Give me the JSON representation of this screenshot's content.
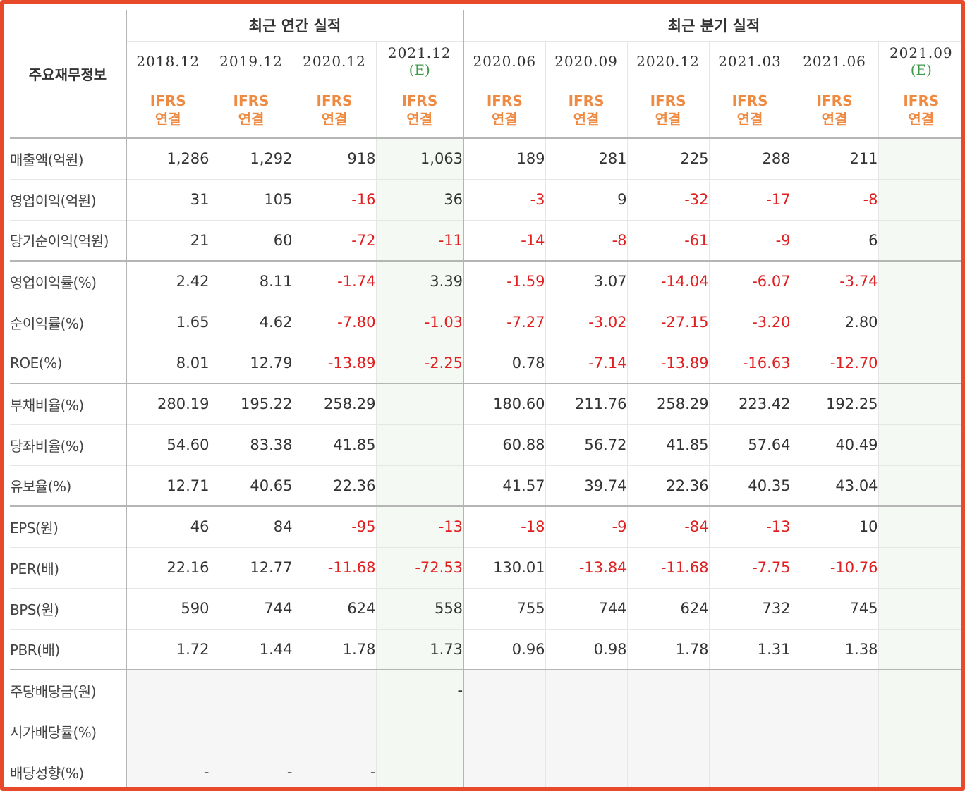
{
  "header": {
    "main_label": "주요재무정보",
    "annual_title": "최근 연간 실적",
    "quarter_title": "최근 분기 실적",
    "estimate_mark": "(E)",
    "ifrs_line1": "IFRS",
    "ifrs_line2": "연결"
  },
  "periods": [
    {
      "label": "2018.12"
    },
    {
      "label": "2019.12"
    },
    {
      "label": "2020.12"
    },
    {
      "label": "2021.12"
    },
    {
      "label": "2020.06"
    },
    {
      "label": "2020.09"
    },
    {
      "label": "2020.12"
    },
    {
      "label": "2021.03"
    },
    {
      "label": "2021.06"
    },
    {
      "label": "2021.09"
    }
  ],
  "rows": [
    {
      "label": "매출액(억원)",
      "values": [
        "1,286",
        "1,292",
        "918",
        "1,063",
        "189",
        "281",
        "225",
        "288",
        "211",
        ""
      ]
    },
    {
      "label": "영업이익(억원)",
      "values": [
        "31",
        "105",
        "-16",
        "36",
        "-3",
        "9",
        "-32",
        "-17",
        "-8",
        ""
      ]
    },
    {
      "label": "당기순이익(억원)",
      "values": [
        "21",
        "60",
        "-72",
        "-11",
        "-14",
        "-8",
        "-61",
        "-9",
        "6",
        ""
      ]
    },
    {
      "label": "영업이익률(%)",
      "values": [
        "2.42",
        "8.11",
        "-1.74",
        "3.39",
        "-1.59",
        "3.07",
        "-14.04",
        "-6.07",
        "-3.74",
        ""
      ]
    },
    {
      "label": "순이익률(%)",
      "values": [
        "1.65",
        "4.62",
        "-7.80",
        "-1.03",
        "-7.27",
        "-3.02",
        "-27.15",
        "-3.20",
        "2.80",
        ""
      ]
    },
    {
      "label": "ROE(%)",
      "values": [
        "8.01",
        "12.79",
        "-13.89",
        "-2.25",
        "0.78",
        "-7.14",
        "-13.89",
        "-16.63",
        "-12.70",
        ""
      ]
    },
    {
      "label": "부채비율(%)",
      "values": [
        "280.19",
        "195.22",
        "258.29",
        "",
        "180.60",
        "211.76",
        "258.29",
        "223.42",
        "192.25",
        ""
      ]
    },
    {
      "label": "당좌비율(%)",
      "values": [
        "54.60",
        "83.38",
        "41.85",
        "",
        "60.88",
        "56.72",
        "41.85",
        "57.64",
        "40.49",
        ""
      ]
    },
    {
      "label": "유보율(%)",
      "values": [
        "12.71",
        "40.65",
        "22.36",
        "",
        "41.57",
        "39.74",
        "22.36",
        "40.35",
        "43.04",
        ""
      ]
    },
    {
      "label": "EPS(원)",
      "values": [
        "46",
        "84",
        "-95",
        "-13",
        "-18",
        "-9",
        "-84",
        "-13",
        "10",
        ""
      ]
    },
    {
      "label": "PER(배)",
      "values": [
        "22.16",
        "12.77",
        "-11.68",
        "-72.53",
        "130.01",
        "-13.84",
        "-11.68",
        "-7.75",
        "-10.76",
        ""
      ]
    },
    {
      "label": "BPS(원)",
      "values": [
        "590",
        "744",
        "624",
        "558",
        "755",
        "744",
        "624",
        "732",
        "745",
        ""
      ]
    },
    {
      "label": "PBR(배)",
      "values": [
        "1.72",
        "1.44",
        "1.78",
        "1.73",
        "0.96",
        "0.98",
        "1.78",
        "1.31",
        "1.38",
        ""
      ]
    },
    {
      "label": "주당배당금(원)",
      "values": [
        "",
        "",
        "",
        "-",
        "",
        "",
        "",
        "",
        "",
        ""
      ]
    },
    {
      "label": "시가배당률(%)",
      "values": [
        "",
        "",
        "",
        "",
        "",
        "",
        "",
        "",
        "",
        ""
      ]
    },
    {
      "label": "배당성향(%)",
      "values": [
        "-",
        "-",
        "-",
        "",
        "",
        "",
        "",
        "",
        "",
        ""
      ]
    }
  ],
  "colors": {
    "frame_border": "#e8492a",
    "ifrs_text": "#ef8a43",
    "negative_value": "#e02020",
    "estimate_mark": "#3e9a4a",
    "estimate_column_bg": "#f4f9f3"
  }
}
